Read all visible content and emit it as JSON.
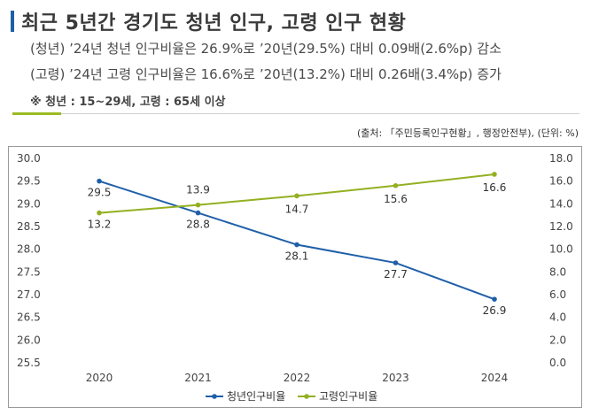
{
  "header": {
    "title": "최근 5년간 경기도 청년 인구, 고령 인구 현황",
    "line1": "(청년) ’24년 청년 인구비율은 26.9%로 ’20년(29.5%) 대비 0.09배(2.6%p) 감소",
    "line2": "(고령) ’24년 고령 인구비율은 16.6%로 ’20년(13.2%) 대비 0.26배(3.4%p) 증가",
    "note": "※ 청년 : 15~29세, 고령 : 65세 이상",
    "source": "(출처: 「주민등록인구현황」, 행정안전부), (단위: %)"
  },
  "colors": {
    "accent": "#1f5fa8",
    "youth": "#1f5fa8",
    "elderly": "#93b021",
    "divider_accent": "#9bbb22"
  },
  "chart_data": {
    "type": "line",
    "categories": [
      "2020",
      "2021",
      "2022",
      "2023",
      "2024"
    ],
    "series": [
      {
        "name": "청년인구비율",
        "axis": "left",
        "color": "#1f5fa8",
        "values": [
          29.5,
          28.8,
          28.1,
          27.7,
          26.9
        ]
      },
      {
        "name": "고령인구비율",
        "axis": "right",
        "color": "#93b021",
        "values": [
          13.2,
          13.9,
          14.7,
          15.6,
          16.6
        ]
      }
    ],
    "y_left": {
      "ylim": [
        25.5,
        30.0
      ],
      "ticks": [
        "30.0",
        "29.5",
        "29.0",
        "28.5",
        "28.0",
        "27.5",
        "27.0",
        "26.5",
        "26.0",
        "25.5"
      ]
    },
    "y_right": {
      "ylim": [
        0.0,
        18.0
      ],
      "ticks": [
        "18.0",
        "16.0",
        "14.0",
        "12.0",
        "10.0",
        "8.0",
        "6.0",
        "4.0",
        "2.0",
        "0.0"
      ]
    },
    "grid": false,
    "legend_position": "bottom-center"
  }
}
